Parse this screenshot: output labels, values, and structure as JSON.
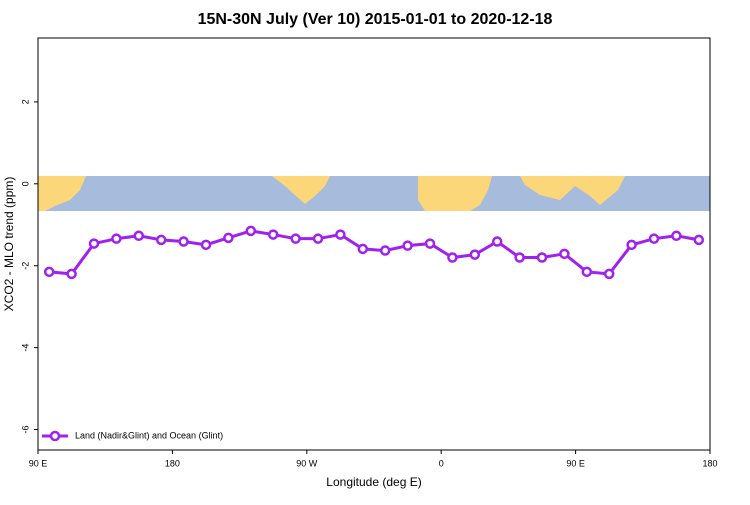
{
  "chart_data": {
    "type": "line",
    "title": "15N-30N July (Ver 10)   2015-01-01 to 2020-12-18",
    "xlabel": "Longitude (deg E)",
    "ylabel": "XCO2 - MLO trend (ppm)",
    "x": [
      97.5,
      112.5,
      127.5,
      142.5,
      157.5,
      172.5,
      187.5,
      202.5,
      217.5,
      232.5,
      247.5,
      262.5,
      277.5,
      292.5,
      307.5,
      322.5,
      337.5,
      352.5,
      367.5,
      382.5,
      397.5,
      412.5,
      427.5,
      442.5,
      457.5,
      472.5,
      487.5,
      502.5,
      517.5,
      532.5
    ],
    "series": [
      {
        "name": "Land (Nadir&Glint) and Ocean (Glint)",
        "color": "#a020f0",
        "values": [
          -2.15,
          -2.2,
          -1.46,
          -1.34,
          -1.27,
          -1.37,
          -1.41,
          -1.49,
          -1.32,
          -1.15,
          -1.24,
          -1.34,
          -1.34,
          -1.24,
          -1.59,
          -1.63,
          -1.51,
          -1.46,
          -1.8,
          -1.73,
          -1.41,
          -1.8,
          -1.8,
          -1.71,
          -2.15,
          -2.2,
          -1.49,
          -1.34,
          -1.27,
          -1.37
        ]
      }
    ],
    "xlim": [
      90,
      540
    ],
    "xticks": [
      {
        "value": 90,
        "label": "90 E"
      },
      {
        "value": 180,
        "label": "180"
      },
      {
        "value": 270,
        "label": "90 W"
      },
      {
        "value": 360,
        "label": "0"
      },
      {
        "value": 450,
        "label": "90 E"
      },
      {
        "value": 540,
        "label": "180"
      }
    ],
    "ylim": [
      -6.5,
      3.56
    ],
    "yticks": [
      2,
      0,
      -2,
      -4,
      -6
    ],
    "legend": "bottom-left"
  }
}
